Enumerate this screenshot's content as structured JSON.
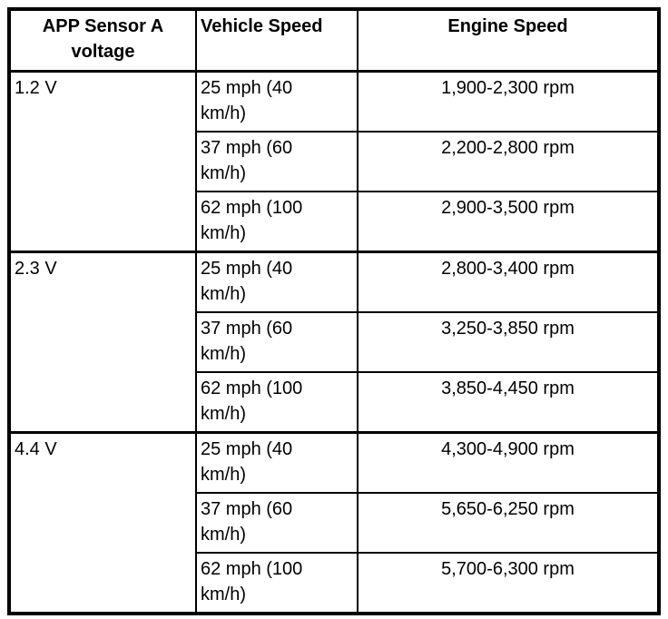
{
  "page": {
    "background_color": "#ffffff",
    "border_color": "#000000",
    "text_color": "#000000"
  },
  "table": {
    "headers": [
      "APP Sensor A\nvoltage",
      "Vehicle Speed",
      "Engine Speed"
    ],
    "groups": [
      {
        "voltage": "1.2 V",
        "rows": [
          {
            "vehicle_speed": "25 mph (40\nkm/h)",
            "engine_speed": "1,900-2,300 rpm"
          },
          {
            "vehicle_speed": "37 mph (60\nkm/h)",
            "engine_speed": "2,200-2,800 rpm"
          },
          {
            "vehicle_speed": "62 mph (100\nkm/h)",
            "engine_speed": "2,900-3,500 rpm"
          }
        ]
      },
      {
        "voltage": "2.3 V",
        "rows": [
          {
            "vehicle_speed": "25 mph (40\nkm/h)",
            "engine_speed": "2,800-3,400 rpm"
          },
          {
            "vehicle_speed": "37 mph (60\nkm/h)",
            "engine_speed": "3,250-3,850 rpm"
          },
          {
            "vehicle_speed": "62 mph (100\nkm/h)",
            "engine_speed": "3,850-4,450 rpm"
          }
        ]
      },
      {
        "voltage": "4.4 V",
        "rows": [
          {
            "vehicle_speed": "25 mph (40\nkm/h)",
            "engine_speed": "4,300-4,900 rpm"
          },
          {
            "vehicle_speed": "37 mph (60\nkm/h)",
            "engine_speed": "5,650-6,250 rpm"
          },
          {
            "vehicle_speed": "62 mph (100\nkm/h)",
            "engine_speed": "5,700-6,300 rpm"
          }
        ]
      }
    ]
  }
}
